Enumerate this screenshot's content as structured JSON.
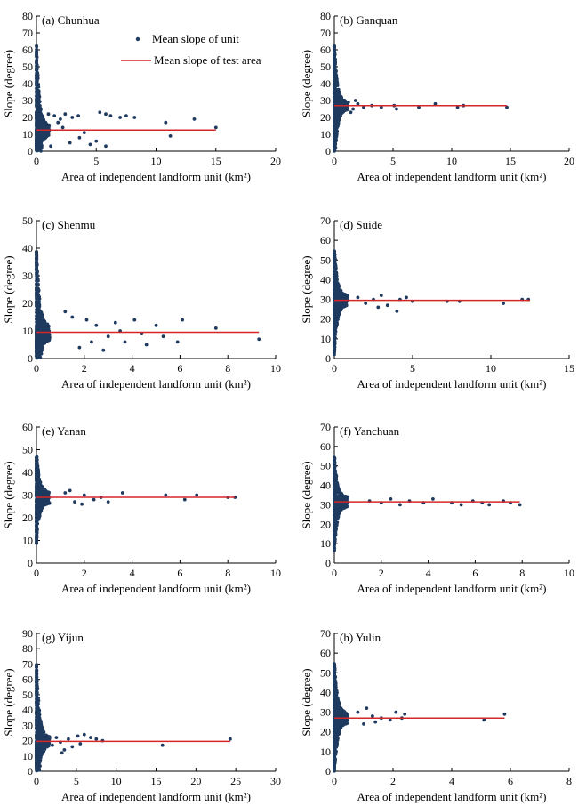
{
  "colors": {
    "point": "#1f3a5f",
    "line": "#d62728",
    "axis": "#000000"
  },
  "legend": {
    "points_label": "Mean slope of unit",
    "line_label": "Mean slope of test area",
    "placement": "top-right of panel (a)"
  },
  "chart_data": [
    {
      "type": "scatter",
      "label": "(a) Chunhua",
      "xlabel": "Area of independent landform unit (km²)",
      "ylabel": "Slope (degree)",
      "xlim": [
        0,
        20
      ],
      "xticks": [
        0,
        5,
        10,
        15,
        20
      ],
      "ylim": [
        0,
        80
      ],
      "yticks": [
        0,
        10,
        20,
        30,
        40,
        50,
        60,
        70,
        80
      ],
      "mean_line": {
        "y": 12.5,
        "x_end": 15
      },
      "outliers": [
        [
          1.0,
          22
        ],
        [
          1.5,
          21
        ],
        [
          2.0,
          19
        ],
        [
          2.4,
          22
        ],
        [
          3.0,
          20
        ],
        [
          3.5,
          21
        ],
        [
          4.0,
          11
        ],
        [
          5.3,
          23
        ],
        [
          5.8,
          22
        ],
        [
          6.2,
          21
        ],
        [
          7.0,
          20
        ],
        [
          7.5,
          21
        ],
        [
          8.2,
          20
        ],
        [
          10.8,
          17
        ],
        [
          11.2,
          9
        ],
        [
          13.2,
          19
        ],
        [
          15.0,
          14
        ],
        [
          4.5,
          4
        ],
        [
          5.0,
          6
        ],
        [
          5.8,
          3
        ],
        [
          1.2,
          3
        ],
        [
          2.8,
          5
        ],
        [
          3.6,
          8
        ],
        [
          2.2,
          14
        ],
        [
          1.8,
          17
        ]
      ]
    },
    {
      "type": "scatter",
      "label": "(b) Ganquan",
      "xlabel": "Area of independent landform unit (km²)",
      "ylabel": "Slope (degree)",
      "xlim": [
        0,
        20
      ],
      "xticks": [
        0,
        5,
        10,
        15,
        20
      ],
      "ylim": [
        0,
        80
      ],
      "yticks": [
        0,
        10,
        20,
        30,
        40,
        50,
        60,
        70,
        80
      ],
      "mean_line": {
        "y": 27,
        "x_end": 14.7
      },
      "outliers": [
        [
          1.2,
          29
        ],
        [
          1.6,
          25
        ],
        [
          2.0,
          28
        ],
        [
          2.5,
          26
        ],
        [
          3.2,
          27
        ],
        [
          4.0,
          26
        ],
        [
          5.1,
          27
        ],
        [
          5.3,
          25
        ],
        [
          7.2,
          26
        ],
        [
          8.6,
          28
        ],
        [
          10.5,
          26
        ],
        [
          11.0,
          27
        ],
        [
          14.7,
          26
        ],
        [
          1.4,
          23
        ],
        [
          1.8,
          30
        ]
      ]
    },
    {
      "type": "scatter",
      "label": "(c) Shenmu",
      "xlabel": "Area of independent landform unit (km²)",
      "ylabel": "Slope (degree)",
      "xlim": [
        0,
        10
      ],
      "xticks": [
        0,
        2,
        4,
        6,
        8,
        10
      ],
      "ylim": [
        0,
        50
      ],
      "yticks": [
        0,
        10,
        20,
        30,
        40,
        50
      ],
      "mean_line": {
        "y": 9.5,
        "x_end": 9.3
      },
      "outliers": [
        [
          1.2,
          17
        ],
        [
          1.5,
          15
        ],
        [
          1.8,
          4
        ],
        [
          2.1,
          14
        ],
        [
          2.5,
          12
        ],
        [
          2.8,
          3
        ],
        [
          3.0,
          8
        ],
        [
          3.3,
          13
        ],
        [
          3.7,
          6
        ],
        [
          4.1,
          14
        ],
        [
          4.6,
          5
        ],
        [
          5.0,
          12
        ],
        [
          5.3,
          8
        ],
        [
          5.9,
          6
        ],
        [
          6.1,
          14
        ],
        [
          7.5,
          11
        ],
        [
          9.3,
          7
        ],
        [
          2.3,
          6
        ],
        [
          3.5,
          10
        ],
        [
          4.4,
          9
        ]
      ]
    },
    {
      "type": "scatter",
      "label": "(d) Suide",
      "xlabel": "Area of independent landform unit (km²)",
      "ylabel": "Slope (degree)",
      "xlim": [
        0,
        15
      ],
      "xticks": [
        0,
        5,
        10,
        15
      ],
      "ylim": [
        0,
        70
      ],
      "yticks": [
        0,
        10,
        20,
        30,
        40,
        50,
        60,
        70
      ],
      "mean_line": {
        "y": 29.5,
        "x_end": 12.5
      },
      "outliers": [
        [
          1.5,
          31
        ],
        [
          2.0,
          28
        ],
        [
          2.5,
          30
        ],
        [
          3.0,
          32
        ],
        [
          3.4,
          27
        ],
        [
          4.2,
          30
        ],
        [
          4.6,
          31
        ],
        [
          5.0,
          29
        ],
        [
          7.2,
          29
        ],
        [
          8.0,
          29
        ],
        [
          10.8,
          28
        ],
        [
          12.0,
          30
        ],
        [
          12.4,
          30
        ],
        [
          2.8,
          26
        ],
        [
          4.0,
          24
        ]
      ]
    },
    {
      "type": "scatter",
      "label": "(e) Yanan",
      "xlabel": "Area of independent landform unit (km²)",
      "ylabel": "Slope (degree)",
      "xlim": [
        0,
        10
      ],
      "xticks": [
        0,
        2,
        4,
        6,
        8,
        10
      ],
      "ylim": [
        0,
        60
      ],
      "yticks": [
        0,
        10,
        20,
        30,
        40,
        50,
        60
      ],
      "mean_line": {
        "y": 29,
        "x_end": 8.3
      },
      "outliers": [
        [
          1.2,
          31
        ],
        [
          1.6,
          27
        ],
        [
          2.0,
          30
        ],
        [
          2.4,
          28
        ],
        [
          2.7,
          29
        ],
        [
          3.0,
          27
        ],
        [
          3.6,
          31
        ],
        [
          5.4,
          30
        ],
        [
          6.2,
          28
        ],
        [
          6.7,
          30
        ],
        [
          8.0,
          29
        ],
        [
          8.3,
          29
        ],
        [
          1.9,
          26
        ],
        [
          1.4,
          32
        ]
      ]
    },
    {
      "type": "scatter",
      "label": "(f) Yanchuan",
      "xlabel": "Area of independent landform unit (km²)",
      "ylabel": "Slope (degree)",
      "xlim": [
        0,
        10
      ],
      "xticks": [
        0,
        2,
        4,
        6,
        8,
        10
      ],
      "ylim": [
        0,
        70
      ],
      "yticks": [
        0,
        10,
        20,
        30,
        40,
        50,
        60,
        70
      ],
      "mean_line": {
        "y": 31.5,
        "x_end": 7.9
      },
      "outliers": [
        [
          1.5,
          32
        ],
        [
          2.0,
          31
        ],
        [
          2.4,
          33
        ],
        [
          2.8,
          30
        ],
        [
          3.2,
          32
        ],
        [
          3.8,
          31
        ],
        [
          4.2,
          33
        ],
        [
          5.0,
          31
        ],
        [
          5.4,
          30
        ],
        [
          5.9,
          32
        ],
        [
          6.3,
          31
        ],
        [
          6.6,
          30
        ],
        [
          7.2,
          32
        ],
        [
          7.5,
          31
        ],
        [
          7.9,
          30
        ]
      ]
    },
    {
      "type": "scatter",
      "label": "(g) Yijun",
      "xlabel": "Area of independent landform unit (km²)",
      "ylabel": "Slope (degree)",
      "xlim": [
        0,
        30
      ],
      "xticks": [
        0,
        5,
        10,
        15,
        20,
        25,
        30
      ],
      "ylim": [
        0,
        90
      ],
      "yticks": [
        0,
        10,
        20,
        30,
        40,
        50,
        60,
        70,
        80,
        90
      ],
      "mean_line": {
        "y": 19.5,
        "x_end": 24.3
      },
      "outliers": [
        [
          2.0,
          17
        ],
        [
          2.5,
          22
        ],
        [
          3.0,
          19
        ],
        [
          3.5,
          14
        ],
        [
          4.0,
          21
        ],
        [
          4.5,
          16
        ],
        [
          5.2,
          23
        ],
        [
          6.0,
          24
        ],
        [
          6.8,
          22
        ],
        [
          7.5,
          21
        ],
        [
          8.3,
          20
        ],
        [
          15.8,
          17
        ],
        [
          24.3,
          21
        ],
        [
          3.2,
          12
        ],
        [
          5.5,
          18
        ]
      ]
    },
    {
      "type": "scatter",
      "label": "(h) Yulin",
      "xlabel": "Area of independent landform unit (km²)",
      "ylabel": "Slope (degree)",
      "xlim": [
        0,
        8
      ],
      "xticks": [
        0,
        2,
        4,
        6,
        8
      ],
      "ylim": [
        0,
        70
      ],
      "yticks": [
        0,
        10,
        20,
        30,
        40,
        50,
        60,
        70
      ],
      "mean_line": {
        "y": 27,
        "x_end": 5.8
      },
      "outliers": [
        [
          0.8,
          30
        ],
        [
          1.0,
          24
        ],
        [
          1.3,
          28
        ],
        [
          1.6,
          27
        ],
        [
          1.9,
          26
        ],
        [
          2.1,
          30
        ],
        [
          2.3,
          27
        ],
        [
          2.4,
          29
        ],
        [
          5.1,
          26
        ],
        [
          5.8,
          29
        ],
        [
          1.1,
          32
        ],
        [
          1.4,
          25
        ]
      ]
    }
  ]
}
